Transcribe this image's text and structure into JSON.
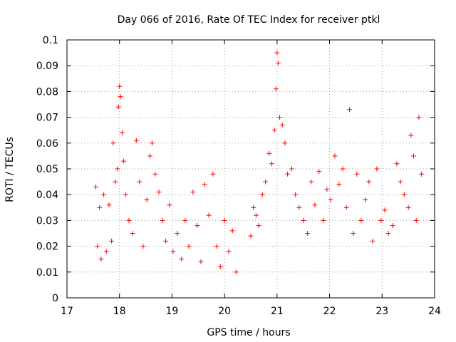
{
  "chart_data": {
    "type": "scatter",
    "title": "Day 066 of 2016, Rate Of TEC Index for receiver ptkl",
    "xlabel": "GPS time / hours",
    "ylabel": "ROTI / TECUs",
    "xlim": [
      17,
      24
    ],
    "ylim": [
      0,
      0.1
    ],
    "x_ticks": [
      "17",
      "18",
      "19",
      "20",
      "21",
      "22",
      "23",
      "24"
    ],
    "y_ticks": [
      "0",
      "0.01",
      "0.02",
      "0.03",
      "0.04",
      "0.05",
      "0.06",
      "0.07",
      "0.08",
      "0.09",
      "0.1"
    ],
    "grid": true,
    "marker": "+",
    "color": "#ff0000",
    "series": [
      {
        "name": "ptkl",
        "x": [
          17.55,
          17.58,
          17.62,
          17.65,
          17.7,
          17.75,
          17.8,
          17.85,
          17.88,
          17.92,
          17.96,
          17.98,
          18.0,
          18.02,
          18.05,
          18.08,
          18.12,
          18.18,
          18.25,
          18.32,
          18.38,
          18.45,
          18.52,
          18.58,
          18.62,
          18.68,
          18.75,
          18.82,
          18.88,
          18.95,
          19.02,
          19.1,
          19.18,
          19.25,
          19.32,
          19.4,
          19.48,
          19.55,
          19.62,
          19.7,
          19.78,
          19.85,
          19.92,
          20.0,
          20.08,
          20.15,
          20.22,
          20.5,
          20.55,
          20.6,
          20.65,
          20.72,
          20.78,
          20.85,
          20.9,
          20.95,
          20.98,
          21.0,
          21.02,
          21.05,
          21.1,
          21.15,
          21.2,
          21.28,
          21.35,
          21.42,
          21.5,
          21.58,
          21.65,
          21.72,
          21.8,
          21.88,
          21.95,
          22.02,
          22.1,
          22.18,
          22.25,
          22.32,
          22.38,
          22.45,
          22.52,
          22.6,
          22.68,
          22.75,
          22.82,
          22.9,
          22.98,
          23.05,
          23.12,
          23.2,
          23.28,
          23.35,
          23.42,
          23.5,
          23.55,
          23.6,
          23.65,
          23.7,
          23.75
        ],
        "y": [
          0.043,
          0.02,
          0.035,
          0.015,
          0.04,
          0.018,
          0.036,
          0.022,
          0.06,
          0.045,
          0.05,
          0.074,
          0.082,
          0.078,
          0.064,
          0.053,
          0.04,
          0.03,
          0.025,
          0.061,
          0.045,
          0.02,
          0.038,
          0.055,
          0.06,
          0.048,
          0.041,
          0.03,
          0.022,
          0.036,
          0.018,
          0.025,
          0.015,
          0.03,
          0.02,
          0.041,
          0.028,
          0.014,
          0.044,
          0.032,
          0.048,
          0.02,
          0.012,
          0.03,
          0.018,
          0.026,
          0.01,
          0.024,
          0.035,
          0.032,
          0.028,
          0.04,
          0.045,
          0.056,
          0.052,
          0.065,
          0.081,
          0.095,
          0.091,
          0.07,
          0.067,
          0.06,
          0.048,
          0.05,
          0.04,
          0.035,
          0.03,
          0.025,
          0.045,
          0.036,
          0.049,
          0.03,
          0.042,
          0.038,
          0.055,
          0.044,
          0.05,
          0.035,
          0.073,
          0.025,
          0.048,
          0.03,
          0.038,
          0.045,
          0.022,
          0.05,
          0.03,
          0.034,
          0.025,
          0.028,
          0.052,
          0.045,
          0.04,
          0.035,
          0.063,
          0.055,
          0.03,
          0.07,
          0.048
        ]
      }
    ]
  }
}
